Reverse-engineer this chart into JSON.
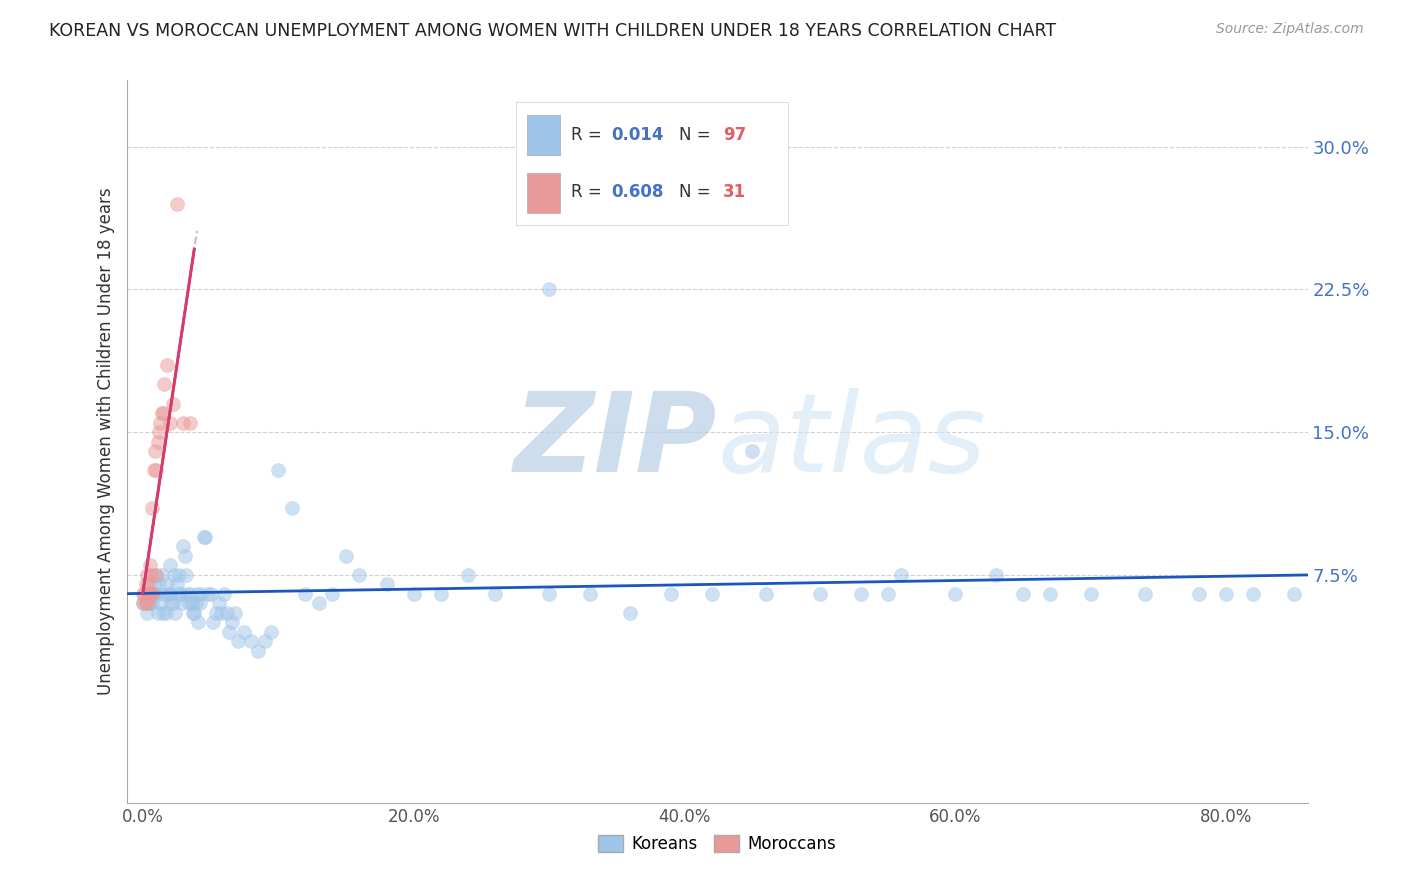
{
  "title": "KOREAN VS MOROCCAN UNEMPLOYMENT AMONG WOMEN WITH CHILDREN UNDER 18 YEARS CORRELATION CHART",
  "source": "Source: ZipAtlas.com",
  "ylabel": "Unemployment Among Women with Children Under 18 years",
  "xlabel_ticks": [
    "0.0%",
    "20.0%",
    "40.0%",
    "60.0%",
    "80.0%"
  ],
  "xlabel_vals": [
    0.0,
    0.2,
    0.4,
    0.6,
    0.8
  ],
  "ylabel_ticks": [
    "7.5%",
    "15.0%",
    "22.5%",
    "30.0%"
  ],
  "ylabel_vals": [
    0.075,
    0.15,
    0.225,
    0.3
  ],
  "xlim": [
    -0.012,
    0.86
  ],
  "ylim": [
    -0.045,
    0.335
  ],
  "korean_R": "0.014",
  "korean_N": "97",
  "moroccan_R": "0.608",
  "moroccan_N": "31",
  "korean_color": "#9fc5e8",
  "moroccan_color": "#ea9999",
  "korean_line_color": "#1a56bb",
  "moroccan_line_color": "#d63c6a",
  "watermark_zip_color": "#b8cfe8",
  "watermark_atlas_color": "#d0e4f4",
  "background_color": "#ffffff",
  "grid_color": "#cccccc",
  "title_color": "#222222",
  "legend_text_color": "#4472c4",
  "legend_n_color": "#e06060",
  "korean_x": [
    0.0,
    0.002,
    0.003,
    0.005,
    0.006,
    0.007,
    0.008,
    0.009,
    0.01,
    0.01,
    0.011,
    0.012,
    0.013,
    0.014,
    0.015,
    0.016,
    0.017,
    0.018,
    0.019,
    0.02,
    0.02,
    0.021,
    0.022,
    0.023,
    0.024,
    0.025,
    0.026,
    0.027,
    0.028,
    0.029,
    0.03,
    0.031,
    0.032,
    0.033,
    0.034,
    0.035,
    0.036,
    0.037,
    0.038,
    0.039,
    0.04,
    0.041,
    0.042,
    0.043,
    0.045,
    0.046,
    0.048,
    0.05,
    0.052,
    0.054,
    0.056,
    0.058,
    0.06,
    0.062,
    0.064,
    0.066,
    0.068,
    0.07,
    0.075,
    0.08,
    0.085,
    0.09,
    0.095,
    0.1,
    0.11,
    0.12,
    0.13,
    0.14,
    0.15,
    0.16,
    0.18,
    0.2,
    0.22,
    0.24,
    0.26,
    0.3,
    0.33,
    0.36,
    0.39,
    0.42,
    0.46,
    0.5,
    0.53,
    0.56,
    0.6,
    0.63,
    0.67,
    0.7,
    0.74,
    0.78,
    0.8,
    0.82,
    0.85,
    0.3,
    0.45,
    0.55,
    0.65
  ],
  "korean_y": [
    0.06,
    0.06,
    0.055,
    0.06,
    0.065,
    0.06,
    0.07,
    0.065,
    0.075,
    0.065,
    0.055,
    0.07,
    0.06,
    0.075,
    0.055,
    0.065,
    0.055,
    0.07,
    0.065,
    0.065,
    0.08,
    0.06,
    0.06,
    0.075,
    0.055,
    0.07,
    0.065,
    0.075,
    0.065,
    0.06,
    0.09,
    0.085,
    0.075,
    0.065,
    0.06,
    0.065,
    0.06,
    0.055,
    0.055,
    0.06,
    0.065,
    0.05,
    0.06,
    0.065,
    0.095,
    0.095,
    0.065,
    0.065,
    0.05,
    0.055,
    0.06,
    0.055,
    0.065,
    0.055,
    0.045,
    0.05,
    0.055,
    0.04,
    0.045,
    0.04,
    0.035,
    0.04,
    0.045,
    0.13,
    0.11,
    0.065,
    0.06,
    0.065,
    0.085,
    0.075,
    0.07,
    0.065,
    0.065,
    0.075,
    0.065,
    0.225,
    0.065,
    0.055,
    0.065,
    0.065,
    0.065,
    0.065,
    0.065,
    0.075,
    0.065,
    0.075,
    0.065,
    0.065,
    0.065,
    0.065,
    0.065,
    0.065,
    0.065,
    0.065,
    0.14,
    0.065,
    0.065
  ],
  "moroccan_x": [
    0.0,
    0.0,
    0.001,
    0.002,
    0.002,
    0.003,
    0.003,
    0.004,
    0.004,
    0.005,
    0.005,
    0.006,
    0.006,
    0.007,
    0.007,
    0.008,
    0.009,
    0.01,
    0.01,
    0.011,
    0.012,
    0.013,
    0.014,
    0.015,
    0.016,
    0.018,
    0.02,
    0.022,
    0.025,
    0.03,
    0.035
  ],
  "moroccan_y": [
    0.06,
    0.065,
    0.065,
    0.06,
    0.07,
    0.065,
    0.075,
    0.06,
    0.07,
    0.065,
    0.08,
    0.065,
    0.075,
    0.065,
    0.11,
    0.13,
    0.14,
    0.075,
    0.13,
    0.145,
    0.15,
    0.155,
    0.16,
    0.16,
    0.175,
    0.185,
    0.155,
    0.165,
    0.27,
    0.155,
    0.155
  ]
}
